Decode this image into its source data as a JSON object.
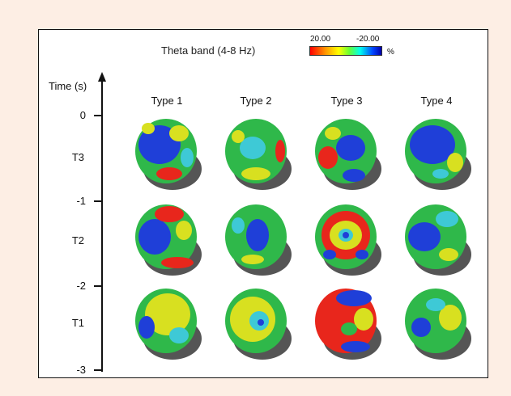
{
  "figure": {
    "title": "Theta band (4-8 Hz)",
    "colorbar": {
      "left_label": "20.00",
      "right_label": "-20.00",
      "unit": "%"
    },
    "y_axis": {
      "label": "Time (s)",
      "ticks": [
        "0",
        "-1",
        "-2",
        "-3"
      ]
    },
    "rows": [
      "T3",
      "T2",
      "T1"
    ],
    "columns": [
      "Type 1",
      "Type 2",
      "Type 3",
      "Type 4"
    ]
  },
  "colors": {
    "page_bg": "#fdeee4",
    "head_base": "#2fb84a",
    "red": "#e8261c",
    "yellow": "#d8e020",
    "blue": "#1f3fd8",
    "cyan": "#3ec9d6"
  },
  "heads": [
    {
      "row": "T3",
      "type": "Type 1",
      "blobs": [
        "blue-large",
        "yellow-left",
        "red-bottom"
      ]
    },
    {
      "row": "T3",
      "type": "Type 2",
      "blobs": [
        "cyan-center",
        "red-right",
        "yellow-bottom"
      ]
    },
    {
      "row": "T3",
      "type": "Type 3",
      "blobs": [
        "blue-center",
        "red-left",
        "blue-bottom"
      ]
    },
    {
      "row": "T3",
      "type": "Type 4",
      "blobs": [
        "blue-large",
        "yellow-right"
      ]
    },
    {
      "row": "T2",
      "type": "Type 1",
      "blobs": [
        "blue-left",
        "red-top",
        "red-bottom"
      ]
    },
    {
      "row": "T2",
      "type": "Type 2",
      "blobs": [
        "blue-center",
        "yellow-bottom"
      ]
    },
    {
      "row": "T2",
      "type": "Type 3",
      "blobs": [
        "red-ring",
        "blue-center",
        "yellow-spots"
      ]
    },
    {
      "row": "T2",
      "type": "Type 4",
      "blobs": [
        "blue-left",
        "green"
      ]
    },
    {
      "row": "T1",
      "type": "Type 1",
      "blobs": [
        "yellow-large",
        "blue-left"
      ]
    },
    {
      "row": "T1",
      "type": "Type 2",
      "blobs": [
        "yellow-large",
        "cyan-center"
      ]
    },
    {
      "row": "T1",
      "type": "Type 3",
      "blobs": [
        "red-left",
        "blue-top",
        "blue-bottom"
      ]
    },
    {
      "row": "T1",
      "type": "Type 4",
      "blobs": [
        "green",
        "blue-left",
        "yellow-right"
      ]
    }
  ]
}
